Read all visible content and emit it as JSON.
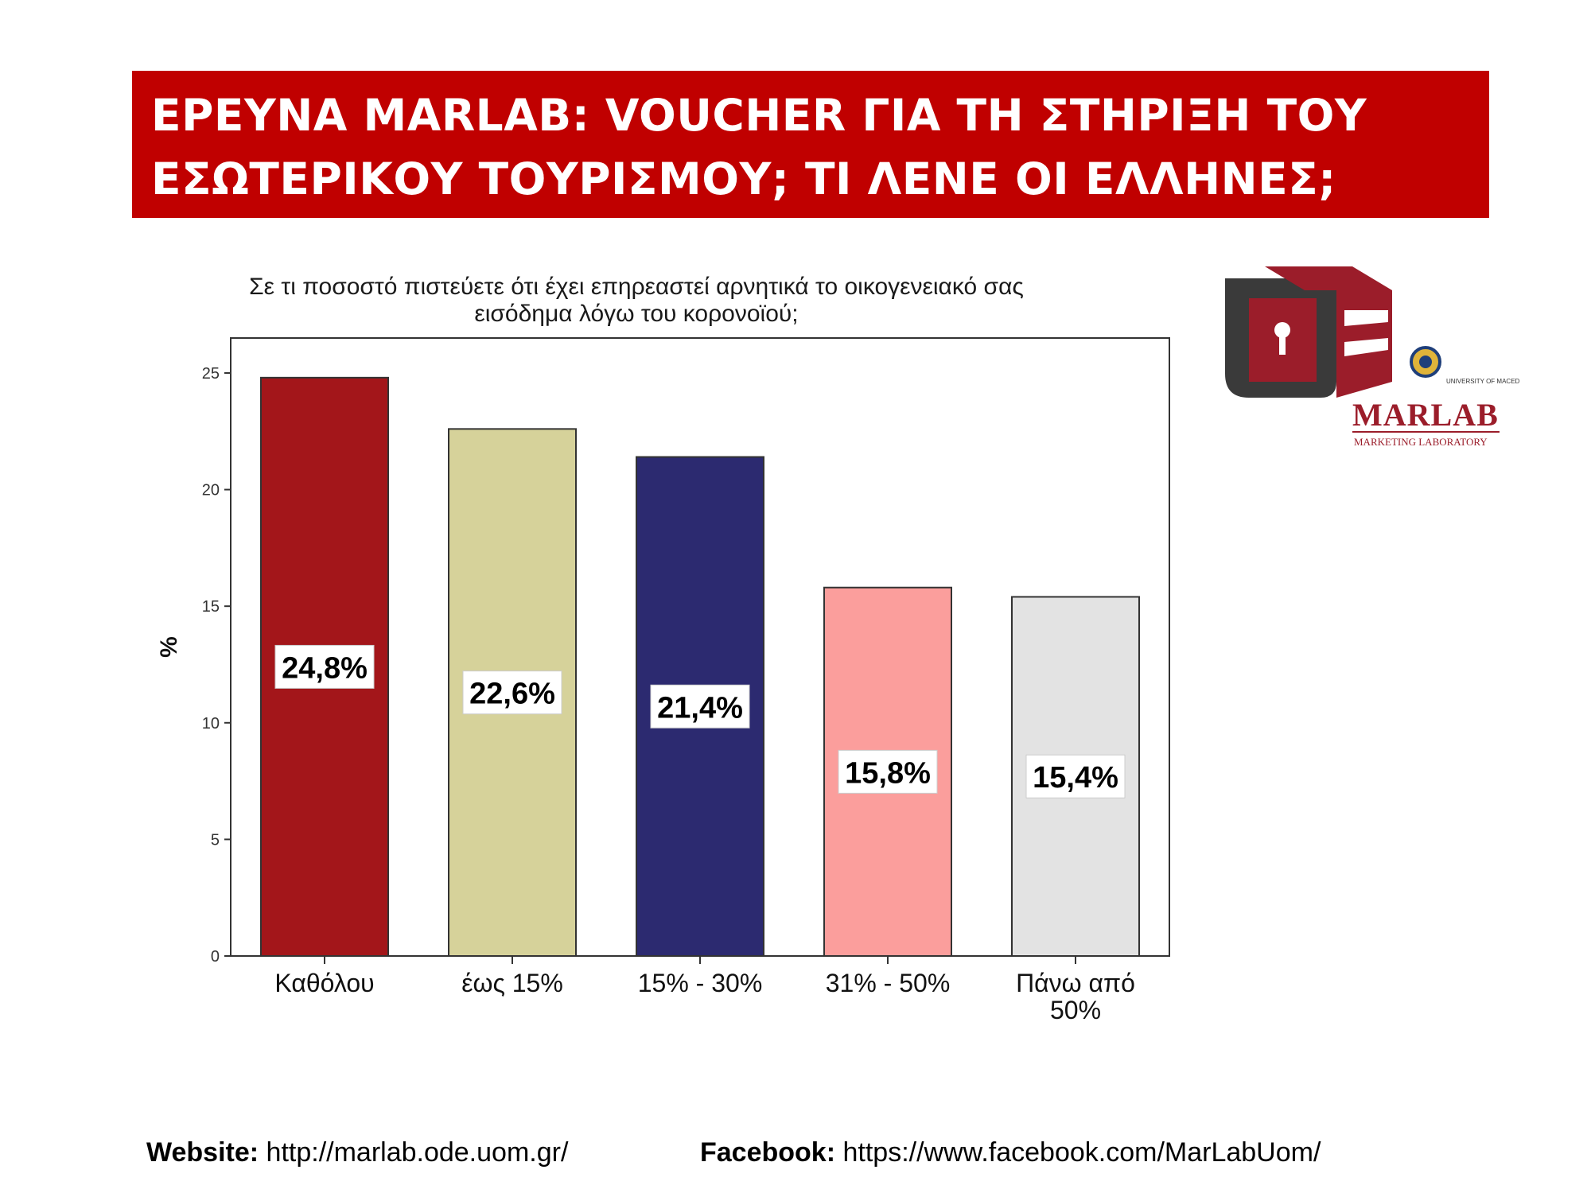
{
  "banner": {
    "line1": "ΕΡΕΥΝΑ MARLAB: VOUCHER ΓΙΑ ΤΗ ΣΤΗΡΙΞΗ ΤΟΥ",
    "line2": "ΕΣΩΤΕΡΙΚΟΥ ΤΟΥΡΙΣΜΟΥ; ΤΙ ΛΕΝΕ ΟΙ ΕΛΛΗΝΕΣ;"
  },
  "logo": {
    "brand": "MARLAB",
    "tagline": "MARKETING LABORATORY",
    "university": "UNIVERSITY OF MACEDONIA"
  },
  "chart_data": {
    "type": "bar",
    "title_line1": "Σε τι ποσοστό πιστεύετε ότι έχει επηρεαστεί αρνητικά το οικογενειακό σας",
    "title_line2": "εισόδημα λόγω του κορονοϊού;",
    "ylabel": "%",
    "xlabel": "",
    "ylim": [
      0,
      26.5
    ],
    "yticks": [
      0,
      5,
      10,
      15,
      20,
      25
    ],
    "grid": false,
    "categories": [
      [
        "Καθόλου"
      ],
      [
        "έως 15%"
      ],
      [
        "15% - 30%"
      ],
      [
        "31% - 50%"
      ],
      [
        "Πάνω από",
        "50%"
      ]
    ],
    "values": [
      24.8,
      22.6,
      21.4,
      15.8,
      15.4
    ],
    "value_labels": [
      "24,8%",
      "22,6%",
      "21,4%",
      "15,8%",
      "15,4%"
    ],
    "colors": [
      "#a3161a",
      "#d6d29a",
      "#2c2a70",
      "#fb9e9c",
      "#e3e3e3"
    ]
  },
  "footer": {
    "website_label": "Website:",
    "website_url": "http://marlab.ode.uom.gr/",
    "facebook_label": "Facebook:",
    "facebook_url": "https://www.facebook.com/MarLabUom/"
  }
}
